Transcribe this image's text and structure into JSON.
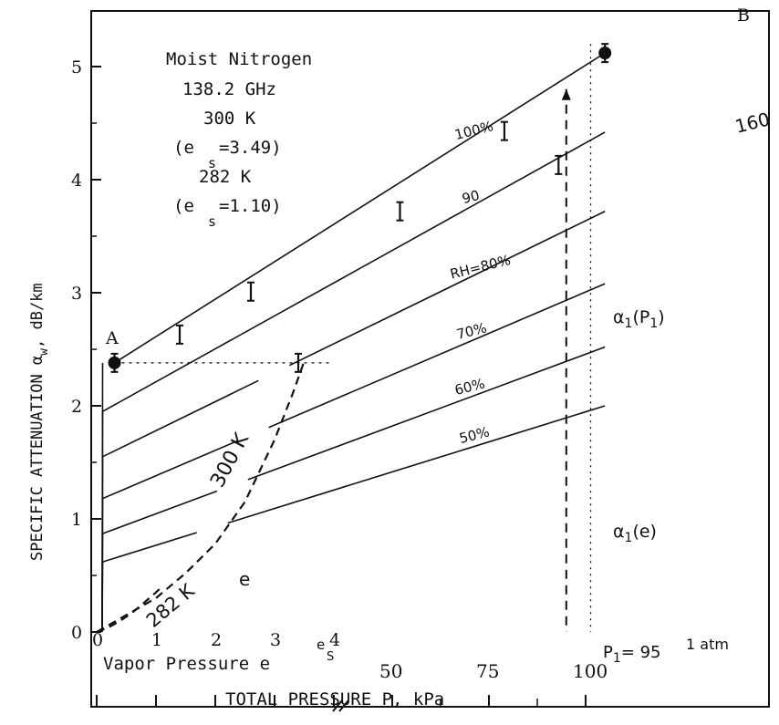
{
  "chart_data": {
    "type": "line",
    "title_lines": [
      "Moist Nitrogen",
      "138.2 GHz",
      "300 K",
      "(e",
      "=3.49)",
      "282 K",
      "(e",
      "=1.10)"
    ],
    "subscript_s": "s",
    "ylabel": "SPECIFIC ATTENUATION α",
    "ylabel_sub": "w",
    "ylabel_unit": ", dB/km",
    "xlabel": "TOTAL PRESSURE P, kPa",
    "xlabel_vapor": "Vapor Pressure e",
    "ylim": [
      0,
      5.5
    ],
    "yticks": [
      "0",
      "1",
      "2",
      "3",
      "4",
      "5"
    ],
    "vapor_axis": {
      "xlim": [
        0,
        4
      ],
      "ticks": [
        "0",
        "1",
        "2",
        "3",
        "4"
      ]
    },
    "total_axis": {
      "xlim": [
        40,
        110
      ],
      "ticks": [
        "50",
        "75",
        "100"
      ]
    },
    "rh_series": [
      {
        "name": "100%",
        "intercept": 2.38,
        "at_105": 5.12,
        "vapor_end": 3.49
      },
      {
        "name": "90",
        "intercept": 1.95,
        "at_105": 4.42,
        "vapor_end": 3.14
      },
      {
        "name": "RH=80%",
        "intercept": 1.55,
        "at_105": 3.72,
        "vapor_end": 2.79
      },
      {
        "name": "70%",
        "intercept": 1.18,
        "at_105": 3.08,
        "vapor_end": 2.44
      },
      {
        "name": "60%",
        "intercept": 0.87,
        "at_105": 2.52,
        "vapor_end": 2.09
      },
      {
        "name": "50%",
        "intercept": 0.62,
        "at_105": 2.0,
        "vapor_end": 1.75
      }
    ],
    "curve_300K": {
      "name": "300 K",
      "e": [
        0,
        0.5,
        1,
        1.5,
        2,
        2.5,
        3,
        3.3,
        3.49
      ],
      "y": [
        0,
        0.15,
        0.3,
        0.52,
        0.78,
        1.15,
        1.7,
        2.1,
        2.38
      ]
    },
    "curve_282K": {
      "name": "282 K",
      "e": [
        0,
        0.2,
        0.4,
        0.6,
        0.8,
        1.0,
        1.1
      ],
      "y": [
        0,
        0.04,
        0.1,
        0.17,
        0.26,
        0.35,
        0.4
      ]
    },
    "measured_100": {
      "vapor": [
        0.3,
        1.4,
        2.6,
        3.4
      ],
      "total": [
        52,
        79,
        93,
        105
      ],
      "y": [
        2.38,
        2.63,
        3.01,
        2.38,
        3.72,
        4.43,
        4.13,
        5.12
      ]
    },
    "annotations": {
      "A": "A",
      "B": "B",
      "label_160": "160",
      "e_label": "e",
      "es_label": "e",
      "es_sub": "S",
      "ap1": "α",
      "ap1_sub": "1",
      "ap1_arg": "(P",
      "ap1_arg_sub": "1",
      "ap1_close": ")",
      "ae": "α",
      "ae_sub": "1",
      "ae_arg": "(e)",
      "p1": "P",
      "p1_sub": "1",
      "p1_val": "= 95",
      "atm": "1 atm",
      "p1_value": 95,
      "atm_value": 101.3
    }
  }
}
